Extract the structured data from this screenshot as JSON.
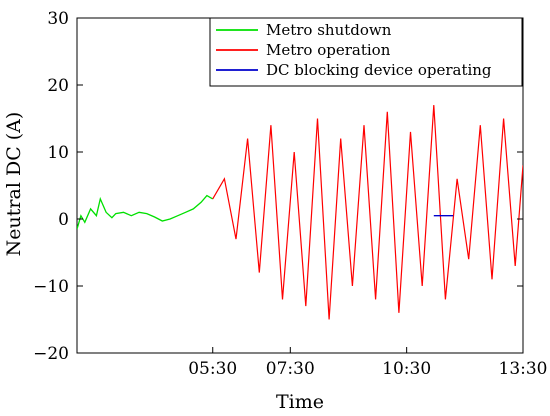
{
  "chart_data": {
    "type": "line",
    "title": "",
    "xlabel": "Time",
    "ylabel": "Neutral DC (A)",
    "x_range_hours": [
      2.0,
      13.5
    ],
    "ylim": [
      -20,
      30
    ],
    "x_ticks": [
      {
        "label": "05:30",
        "value": 5.5
      },
      {
        "label": "07:30",
        "value": 7.5
      },
      {
        "label": "10:30",
        "value": 10.5
      },
      {
        "label": "13:30",
        "value": 13.5
      }
    ],
    "y_ticks": [
      -20,
      -10,
      0,
      10,
      20,
      30
    ],
    "y_tick_labels": [
      "−20",
      "−10",
      "0",
      "10",
      "20",
      "30"
    ],
    "grid": false,
    "legend_position": "top-right",
    "series": [
      {
        "name": "Metro shutdown",
        "color": "#00e000",
        "x": [
          2.0,
          2.1,
          2.2,
          2.35,
          2.5,
          2.6,
          2.75,
          2.9,
          3.0,
          3.2,
          3.4,
          3.6,
          3.8,
          4.0,
          4.2,
          4.4,
          4.6,
          4.8,
          5.0,
          5.2,
          5.35,
          5.5
        ],
        "y": [
          -1.5,
          0.5,
          -0.5,
          1.5,
          0.5,
          3.0,
          1.0,
          0.2,
          0.8,
          1.0,
          0.5,
          1.0,
          0.8,
          0.3,
          -0.3,
          0.0,
          0.5,
          1.0,
          1.5,
          2.5,
          3.5,
          3.0
        ]
      },
      {
        "name": "Metro operation",
        "color": "#ff0000",
        "x": [
          5.5,
          5.8,
          6.1,
          6.4,
          6.7,
          7.0,
          7.3,
          7.6,
          7.9,
          8.2,
          8.5,
          8.8,
          9.1,
          9.4,
          9.7,
          10.0,
          10.3,
          10.6,
          10.9,
          11.2,
          11.5,
          11.8,
          12.1,
          12.4,
          12.7,
          13.0,
          13.3,
          13.5
        ],
        "y": [
          3.0,
          6.0,
          -3.0,
          12.0,
          -8.0,
          14.0,
          -12.0,
          10.0,
          -13.0,
          15.0,
          -15.0,
          12.0,
          -10.0,
          14.0,
          -12.0,
          16.0,
          -14.0,
          13.0,
          -10.0,
          17.0,
          -12.0,
          6.0,
          -6.0,
          14.0,
          -9.0,
          15.0,
          -7.0,
          8.0
        ]
      },
      {
        "name": "DC blocking device operating",
        "color": "#0000cc",
        "x": [
          11.2,
          11.7
        ],
        "y": [
          0.5,
          0.5
        ]
      }
    ]
  }
}
